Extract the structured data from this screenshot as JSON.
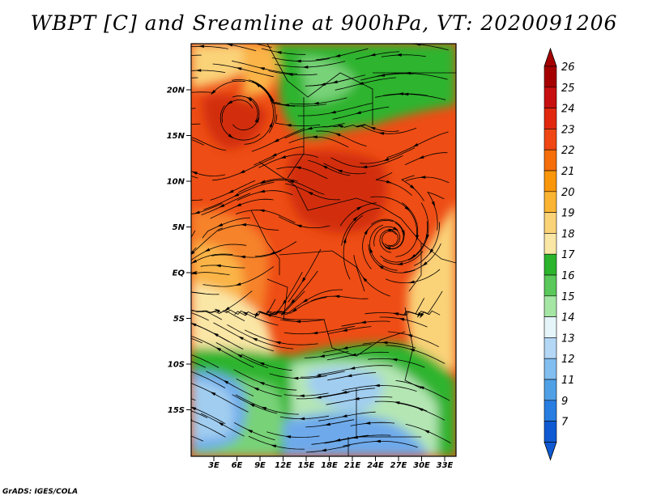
{
  "map": {
    "title": "WBPT [C] and Sreamline at 900hPa, VT: 2020091206",
    "lat_labels": [
      "20N",
      "15N",
      "10N",
      "5N",
      "EQ",
      "5S",
      "10S",
      "15S"
    ],
    "lon_labels": [
      "3E",
      "6E",
      "9E",
      "12E",
      "15E",
      "18E",
      "21E",
      "24E",
      "27E",
      "30E",
      "33E"
    ],
    "credit": "GrADS: IGES/COLA"
  },
  "colorbar": {
    "labels": [
      "26",
      "25",
      "24",
      "23",
      "22",
      "21",
      "20",
      "19",
      "18",
      "17",
      "16",
      "15",
      "14",
      "13",
      "12",
      "11",
      "9",
      "7"
    ],
    "colors": [
      "#a50000",
      "#c80f0f",
      "#e1280f",
      "#f04614",
      "#f56e0a",
      "#fa960a",
      "#fab432",
      "#fad278",
      "#fae6a5",
      "#2db42d",
      "#5ac85a",
      "#a5e6a5",
      "#e6f5fa",
      "#b4d7f5",
      "#82bef0",
      "#50a0e6",
      "#287de1",
      "#0f5ad2"
    ]
  },
  "field": {
    "colors": {
      "deep_red": "#d22d0f",
      "red_orange": "#ee4d15",
      "orange": "#f6822a",
      "light_orange": "#fab446",
      "yellow": "#fad278",
      "pale_yellow": "#fae6a5",
      "green": "#2db42d",
      "light_green": "#78d278",
      "pale_green": "#b4e6b4",
      "light_blue": "#a0cdf0",
      "blue": "#6eaaeb"
    }
  }
}
